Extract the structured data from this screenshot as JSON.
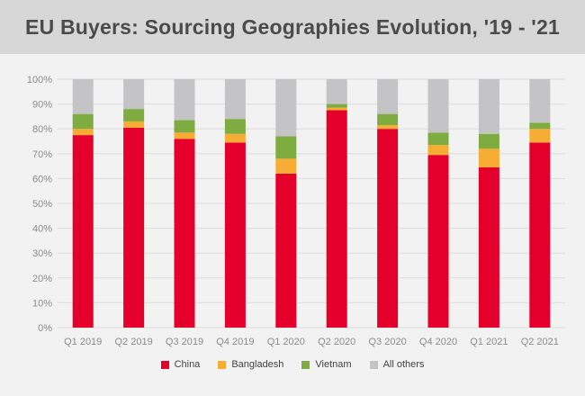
{
  "header": {
    "title": "EU Buyers: Sourcing Geographies Evolution, '19 - '21"
  },
  "colors": {
    "background": "#f2f2f2",
    "header_bg": "#d7d7d7",
    "grid": "#dcdcdc"
  },
  "chart_data": {
    "type": "bar",
    "stacked": true,
    "title": "",
    "xlabel": "",
    "ylabel": "",
    "ylim": [
      0,
      100
    ],
    "yticks": [
      "0%",
      "10%",
      "20%",
      "30%",
      "40%",
      "50%",
      "60%",
      "70%",
      "80%",
      "90%",
      "100%"
    ],
    "grid": true,
    "legend_position": "bottom",
    "categories": [
      "Q1 2019",
      "Q2 2019",
      "Q3 2019",
      "Q4 2019",
      "Q1 2020",
      "Q2 2020",
      "Q3 2020",
      "Q4 2020",
      "Q1 2021",
      "Q2 2021"
    ],
    "series": [
      {
        "name": "China",
        "color": "#e4002b",
        "values": [
          77.5,
          80.5,
          76,
          74.5,
          62,
          87.5,
          80,
          69.5,
          64.5,
          74.5
        ]
      },
      {
        "name": "Bangladesh",
        "color": "#f7ad33",
        "values": [
          2.5,
          2.5,
          2.5,
          3.5,
          6,
          1,
          1.5,
          4,
          7.5,
          5.5
        ]
      },
      {
        "name": "Vietnam",
        "color": "#7fac41",
        "values": [
          6,
          5,
          5,
          6,
          9,
          1.5,
          4.5,
          5,
          6,
          2.5
        ]
      },
      {
        "name": "All others",
        "color": "#c4c4c6",
        "values": [
          14,
          12,
          16.5,
          16,
          23,
          10,
          14,
          21.5,
          22,
          17.5
        ]
      }
    ]
  }
}
